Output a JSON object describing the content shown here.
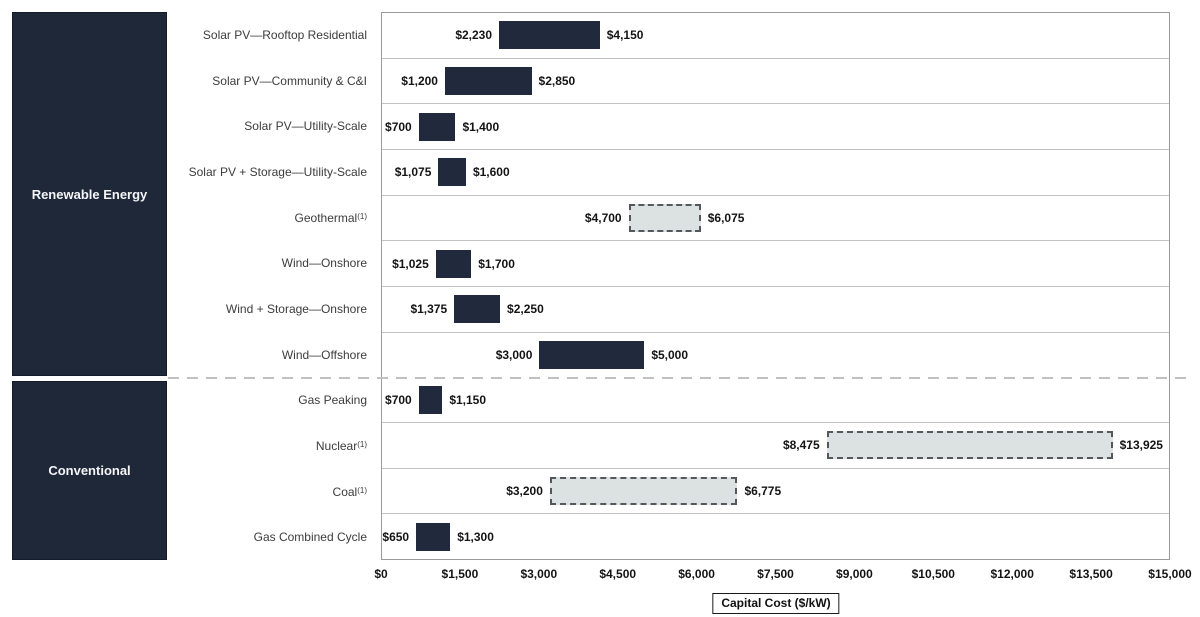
{
  "sidebar": {
    "renewable_label": "Renewable Energy",
    "conventional_label": "Conventional"
  },
  "colors": {
    "bar_solid": "#212a3c",
    "bar_dashed_fill": "#dce1e1",
    "bar_dashed_border": "#54585c",
    "sidebar_bg": "#1f2839",
    "row_separator": "#c3c3c3"
  },
  "chart_data": {
    "type": "bar",
    "orientation": "horizontal",
    "title": "",
    "xlabel": "Capital Cost ($/kW)",
    "xlim": [
      0,
      15000
    ],
    "grid": "horizontal-row-separators",
    "x_ticks": [
      {
        "value": 0,
        "label": "$0"
      },
      {
        "value": 1500,
        "label": "$1,500"
      },
      {
        "value": 3000,
        "label": "$3,000"
      },
      {
        "value": 4500,
        "label": "$4,500"
      },
      {
        "value": 6000,
        "label": "$6,000"
      },
      {
        "value": 7500,
        "label": "$7,500"
      },
      {
        "value": 9000,
        "label": "$9,000"
      },
      {
        "value": 10500,
        "label": "$10,500"
      },
      {
        "value": 12000,
        "label": "$12,000"
      },
      {
        "value": 13500,
        "label": "$13,500"
      },
      {
        "value": 15000,
        "label": "$15,000"
      }
    ],
    "rows": [
      {
        "label": "Solar PV—Rooftop Residential",
        "sup": "",
        "group": "Renewable Energy",
        "low": 2230,
        "high": 4150,
        "low_label": "$2,230",
        "high_label": "$4,150",
        "style": "solid"
      },
      {
        "label": "Solar PV—Community & C&I",
        "sup": "",
        "group": "Renewable Energy",
        "low": 1200,
        "high": 2850,
        "low_label": "$1,200",
        "high_label": "$2,850",
        "style": "solid"
      },
      {
        "label": "Solar PV—Utility-Scale",
        "sup": "",
        "group": "Renewable Energy",
        "low": 700,
        "high": 1400,
        "low_label": "$700",
        "high_label": "$1,400",
        "style": "solid"
      },
      {
        "label": "Solar PV + Storage—Utility-Scale",
        "sup": "",
        "group": "Renewable Energy",
        "low": 1075,
        "high": 1600,
        "low_label": "$1,075",
        "high_label": "$1,600",
        "style": "solid"
      },
      {
        "label": "Geothermal",
        "sup": "(1)",
        "group": "Renewable Energy",
        "low": 4700,
        "high": 6075,
        "low_label": "$4,700",
        "high_label": "$6,075",
        "style": "dashed"
      },
      {
        "label": "Wind—Onshore",
        "sup": "",
        "group": "Renewable Energy",
        "low": 1025,
        "high": 1700,
        "low_label": "$1,025",
        "high_label": "$1,700",
        "style": "solid"
      },
      {
        "label": "Wind + Storage—Onshore",
        "sup": "",
        "group": "Renewable Energy",
        "low": 1375,
        "high": 2250,
        "low_label": "$1,375",
        "high_label": "$2,250",
        "style": "solid"
      },
      {
        "label": "Wind—Offshore",
        "sup": "",
        "group": "Renewable Energy",
        "low": 3000,
        "high": 5000,
        "low_label": "$3,000",
        "high_label": "$5,000",
        "style": "solid"
      },
      {
        "label": "Gas Peaking",
        "sup": "",
        "group": "Conventional",
        "low": 700,
        "high": 1150,
        "low_label": "$700",
        "high_label": "$1,150",
        "style": "solid"
      },
      {
        "label": "Nuclear",
        "sup": "(1)",
        "group": "Conventional",
        "low": 8475,
        "high": 13925,
        "low_label": "$8,475",
        "high_label": "$13,925",
        "style": "dashed"
      },
      {
        "label": "Coal",
        "sup": "(1)",
        "group": "Conventional",
        "low": 3200,
        "high": 6775,
        "low_label": "$3,200",
        "high_label": "$6,775",
        "style": "dashed"
      },
      {
        "label": "Gas Combined Cycle",
        "sup": "",
        "group": "Conventional",
        "low": 650,
        "high": 1300,
        "low_label": "$650",
        "high_label": "$1,300",
        "style": "solid"
      }
    ]
  }
}
